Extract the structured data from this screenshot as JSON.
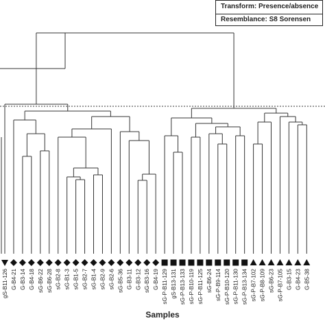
{
  "chart_data": {
    "type": "dendrogram",
    "xlabel": "Samples",
    "legend": {
      "placement": "top-right",
      "lines": [
        "Transform: Presence/absence",
        "Resemblance: S8 Sorensen"
      ]
    },
    "samples": [
      {
        "label": "gS-B11-126",
        "marker": "triangle-down"
      },
      {
        "label": "G-B4-21",
        "marker": "diamond"
      },
      {
        "label": "G-B3-14",
        "marker": "diamond"
      },
      {
        "label": "G-B4-18",
        "marker": "diamond"
      },
      {
        "label": "sG-B6-22",
        "marker": "diamond"
      },
      {
        "label": "sG-B6-28",
        "marker": "diamond"
      },
      {
        "label": "sG-B2-8",
        "marker": "diamond"
      },
      {
        "label": "sG-B1-3",
        "marker": "diamond"
      },
      {
        "label": "sG-B1-5",
        "marker": "diamond"
      },
      {
        "label": "sG-B2-7",
        "marker": "diamond"
      },
      {
        "label": "sG-B1-4",
        "marker": "diamond"
      },
      {
        "label": "sG-B2-9",
        "marker": "diamond"
      },
      {
        "label": "sG-B2-6",
        "marker": "diamond"
      },
      {
        "label": "sG-B5-36",
        "marker": "diamond"
      },
      {
        "label": "G-B3-11",
        "marker": "diamond"
      },
      {
        "label": "G-B3-12",
        "marker": "diamond"
      },
      {
        "label": "sG-B3-16",
        "marker": "diamond"
      },
      {
        "label": "G-B4-19",
        "marker": "diamond"
      },
      {
        "label": "sG-P-B11-129",
        "marker": "square"
      },
      {
        "label": "gS-B13-131",
        "marker": "square"
      },
      {
        "label": "sG-P-B13-133",
        "marker": "square"
      },
      {
        "label": "sG-P-B10-119",
        "marker": "square"
      },
      {
        "label": "sG-P-B11-125",
        "marker": "square"
      },
      {
        "label": "sG-B6-24",
        "marker": "square"
      },
      {
        "label": "sG-P-B9-114",
        "marker": "square"
      },
      {
        "label": "sG-P-B10-120",
        "marker": "square"
      },
      {
        "label": "sG-P-B11-130",
        "marker": "square"
      },
      {
        "label": "sG-P-B13-134",
        "marker": "square"
      },
      {
        "label": "sG-P-B7-102",
        "marker": "triangle-up"
      },
      {
        "label": "sG-P-B8-109",
        "marker": "triangle-up"
      },
      {
        "label": "sG-B6-23",
        "marker": "triangle-up"
      },
      {
        "label": "sG-P-B7-105",
        "marker": "triangle-up"
      },
      {
        "label": "G-B3-15",
        "marker": "triangle-up"
      },
      {
        "label": "G-B4-23",
        "marker": "triangle-up"
      },
      {
        "label": "G-B5-38",
        "marker": "triangle-up"
      }
    ]
  }
}
